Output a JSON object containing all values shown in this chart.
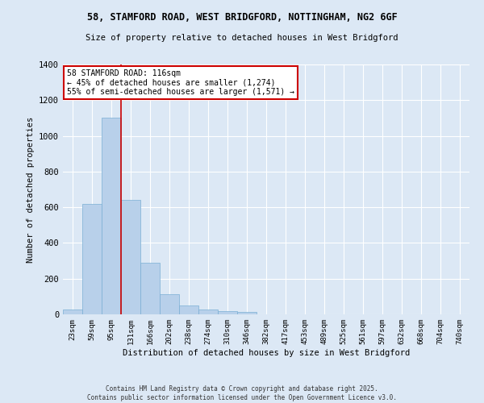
{
  "title_line1": "58, STAMFORD ROAD, WEST BRIDGFORD, NOTTINGHAM, NG2 6GF",
  "title_line2": "Size of property relative to detached houses in West Bridgford",
  "xlabel": "Distribution of detached houses by size in West Bridgford",
  "ylabel": "Number of detached properties",
  "bar_color": "#b8d0ea",
  "bar_edge_color": "#7aafd4",
  "background_color": "#dce8f5",
  "grid_color": "#ffffff",
  "categories": [
    "23sqm",
    "59sqm",
    "95sqm",
    "131sqm",
    "166sqm",
    "202sqm",
    "238sqm",
    "274sqm",
    "310sqm",
    "346sqm",
    "382sqm",
    "417sqm",
    "453sqm",
    "489sqm",
    "525sqm",
    "561sqm",
    "597sqm",
    "632sqm",
    "668sqm",
    "704sqm",
    "740sqm"
  ],
  "values": [
    28,
    620,
    1100,
    640,
    290,
    115,
    50,
    25,
    20,
    15,
    0,
    0,
    0,
    0,
    0,
    0,
    0,
    0,
    0,
    0,
    0
  ],
  "ylim": [
    0,
    1400
  ],
  "yticks": [
    0,
    200,
    400,
    600,
    800,
    1000,
    1200,
    1400
  ],
  "red_line_x": 2.5,
  "annotation_title": "58 STAMFORD ROAD: 116sqm",
  "annotation_line2": "← 45% of detached houses are smaller (1,274)",
  "annotation_line3": "55% of semi-detached houses are larger (1,571) →",
  "annotation_box_color": "#ffffff",
  "annotation_box_edge": "#cc0000",
  "red_line_color": "#cc0000",
  "footer_line1": "Contains HM Land Registry data © Crown copyright and database right 2025.",
  "footer_line2": "Contains public sector information licensed under the Open Government Licence v3.0."
}
